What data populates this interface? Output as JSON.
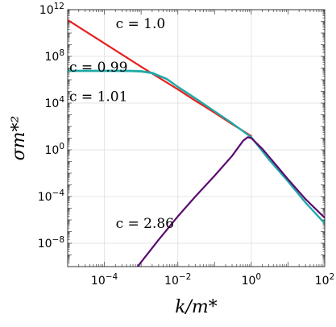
{
  "chart_data": {
    "type": "line",
    "xscale": "log",
    "yscale": "log",
    "xlim": [
      1e-05,
      100
    ],
    "ylim": [
      1e-10,
      1000000000000.0
    ],
    "grid": true,
    "xlabel": "k/m*",
    "ylabel": "σm*²",
    "xticks": [
      {
        "value": 0.0001,
        "base": "10",
        "exp": "−4"
      },
      {
        "value": 0.01,
        "base": "10",
        "exp": "−2"
      },
      {
        "value": 1,
        "base": "10",
        "exp": "0"
      },
      {
        "value": 100,
        "base": "10",
        "exp": "2"
      }
    ],
    "yticks": [
      {
        "value": 1e-08,
        "base": "10",
        "exp": "−8"
      },
      {
        "value": 0.0001,
        "base": "10",
        "exp": "−4"
      },
      {
        "value": 1,
        "base": "10",
        "exp": "0"
      },
      {
        "value": 10000.0,
        "base": "10",
        "exp": "4"
      },
      {
        "value": 100000000.0,
        "base": "10",
        "exp": "8"
      },
      {
        "value": 1000000000000.0,
        "base": "10",
        "exp": "12"
      }
    ],
    "series": [
      {
        "name": "c = 1.0",
        "color": "#e8201f",
        "x": [
          1e-05,
          0.0001,
          0.001,
          0.01,
          0.03,
          0.1,
          0.3,
          1
        ],
        "y": [
          130000000000.0,
          1300000000.0,
          13000000.0,
          150000.0,
          16000.0,
          1500.0,
          160.0,
          15
        ]
      },
      {
        "name": "c = 0.99",
        "color": "#1fa9a8",
        "x": [
          1e-05,
          0.0001,
          0.0005,
          0.001,
          0.002,
          0.005,
          0.01,
          0.03,
          0.1,
          0.3,
          1,
          3,
          10,
          30,
          100
        ],
        "y": [
          6000000.0,
          6000000.0,
          6000000.0,
          5500000.0,
          4000000.0,
          1200000.0,
          250000.0,
          26000.0,
          2000.0,
          190.0,
          12,
          0.15,
          0.002,
          3e-05,
          5e-07
        ]
      },
      {
        "name": "c = 1.01",
        "color": "#1fa9a8",
        "x": [
          1e-05,
          0.0001,
          0.0005,
          0.001,
          0.002,
          0.005,
          0.01,
          0.03,
          0.1,
          0.3,
          1,
          3,
          10,
          30,
          100
        ],
        "y": [
          5500000.0,
          5500000.0,
          5400000.0,
          5000000.0,
          3600000.0,
          1100000.0,
          240000.0,
          25000.0,
          2000.0,
          190.0,
          12,
          0.15,
          0.002,
          3e-05,
          5e-07
        ]
      },
      {
        "name": "c = 2.86",
        "color": "#5b0a6e",
        "x": [
          0.0008,
          0.003,
          0.01,
          0.03,
          0.1,
          0.3,
          0.6,
          0.8,
          1,
          2,
          5,
          10,
          30,
          100
        ],
        "y": [
          1e-10,
          2e-08,
          2e-06,
          0.0001,
          0.006,
          0.3,
          6,
          12,
          10,
          1.2,
          0.04,
          0.003,
          6e-05,
          1.5e-06
        ]
      }
    ],
    "annotations": [
      {
        "text": "c = 1.0",
        "x": 0.0001,
        "y": 25000000000.0
      },
      {
        "text": "c = 0.99",
        "x": 1e-05,
        "y": 5000000.0
      },
      {
        "text": "c = 1.01",
        "x": 1e-05,
        "y": 15000.0
      },
      {
        "text": "c = 2.86",
        "x": 0.0001,
        "y": 2e-07
      }
    ]
  }
}
